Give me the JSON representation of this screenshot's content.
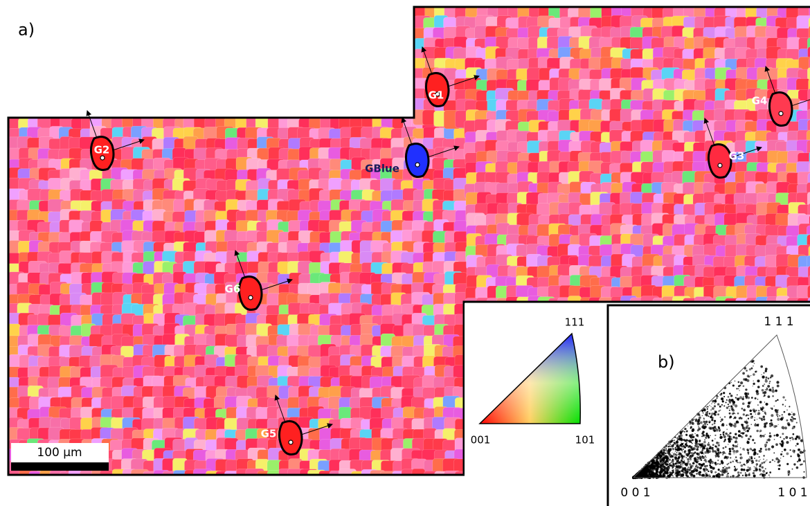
{
  "panel_a": {
    "label": "a)",
    "grains": [
      "G1",
      "G2",
      "G3",
      "G4",
      "G5",
      "G6",
      "GBlue"
    ],
    "scale_bar": "100 µm"
  },
  "legend": {
    "top": "111",
    "left": "001",
    "right": "101"
  },
  "panel_b": {
    "label": "b)",
    "top": "1 1 1",
    "left": "0 0 1",
    "right": "1 0 1"
  }
}
